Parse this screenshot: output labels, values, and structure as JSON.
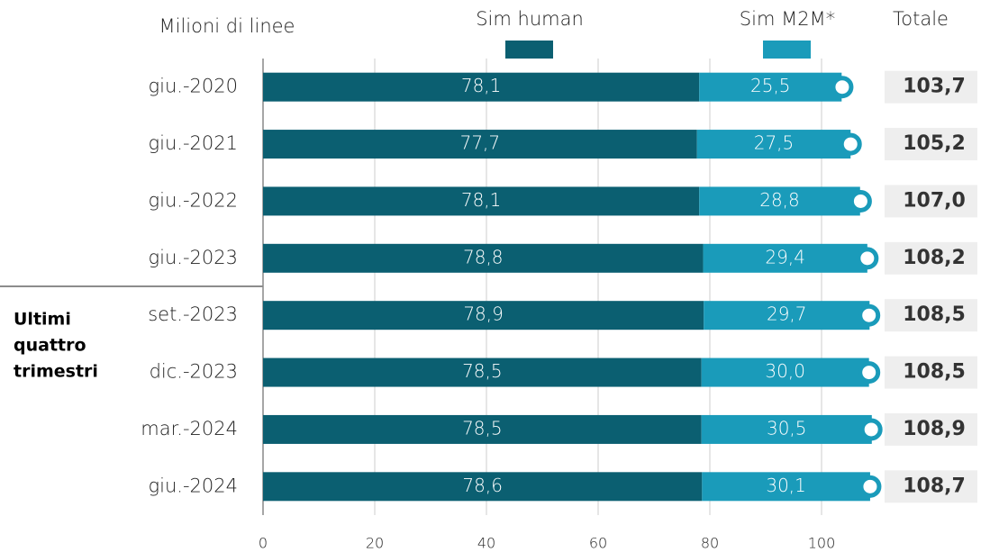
{
  "chart_data": {
    "type": "stacked-hbar",
    "unit_label": "Milioni di linee",
    "group_label": [
      "Ultimi",
      "quattro",
      "trimestri"
    ],
    "categories": [
      "giu.-2020",
      "giu.-2021",
      "giu.-2022",
      "giu.-2023",
      "set.-2023",
      "dic.-2023",
      "mar.-2024",
      "giu.-2024"
    ],
    "series": [
      {
        "name": "Sim human",
        "color": "#0b5f71",
        "values": [
          78.1,
          77.7,
          78.1,
          78.8,
          78.9,
          78.5,
          78.5,
          78.6
        ],
        "value_labels": [
          "78,1",
          "77,7",
          "78,1",
          "78,8",
          "78,9",
          "78,5",
          "78,5",
          "78,6"
        ]
      },
      {
        "name": "Sim M2M*",
        "color": "#1a9bba",
        "values": [
          25.5,
          27.5,
          28.8,
          29.4,
          29.7,
          30.0,
          30.5,
          30.1
        ],
        "value_labels": [
          "25,5",
          "27,5",
          "28,8",
          "29,4",
          "29,7",
          "30,0",
          "30,5",
          "30,1"
        ]
      }
    ],
    "totals": {
      "name": "Totale",
      "values": [
        103.7,
        105.2,
        107.0,
        108.2,
        108.5,
        108.5,
        108.9,
        108.7
      ],
      "value_labels": [
        "103,7",
        "105,2",
        "107,0",
        "108,2",
        "108,5",
        "108,5",
        "108,9",
        "108,7"
      ]
    },
    "xlim": [
      0,
      110
    ],
    "xticks": [
      0,
      20,
      40,
      60,
      80,
      100
    ],
    "grid": true
  }
}
